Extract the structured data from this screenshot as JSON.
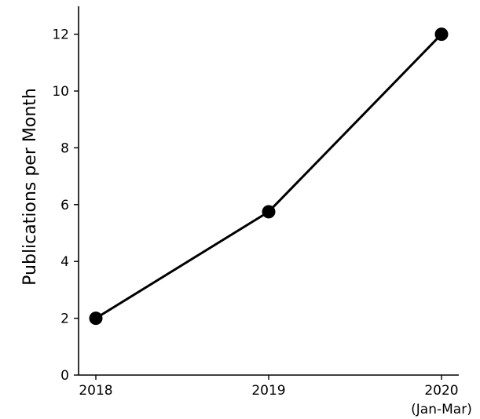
{
  "chart_data": {
    "type": "line",
    "title": "",
    "xlabel": "",
    "ylabel": "Publications per Month",
    "categories": [
      "2018",
      "2019",
      "2020"
    ],
    "category_sublabels": [
      "",
      "",
      "(Jan-Mar)"
    ],
    "values": [
      2.0,
      5.75,
      12.0
    ],
    "ylim": [
      0,
      13
    ],
    "yticks": [
      0,
      2,
      4,
      6,
      8,
      10,
      12
    ],
    "grid": false,
    "legend": "none",
    "line_color": "#000000",
    "marker": "circle"
  }
}
